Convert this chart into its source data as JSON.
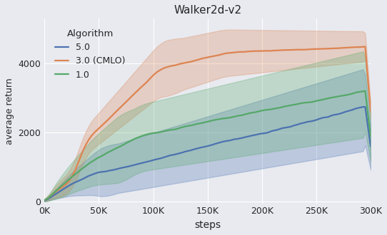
{
  "title": "Walker2d-v2",
  "xlabel": "steps",
  "ylabel": "average return",
  "xlim": [
    0,
    300000
  ],
  "ylim": [
    -50,
    5300
  ],
  "xtick_vals": [
    0,
    50000,
    100000,
    150000,
    200000,
    250000,
    300000
  ],
  "xtick_labels": [
    "0K",
    "50K",
    "100K",
    "150K",
    "200K",
    "250K",
    "300K"
  ],
  "ytick_vals": [
    0,
    2000,
    4000
  ],
  "legend_title": "Algorithm",
  "blue_color": "#4c72b0",
  "orange_color": "#dd8452",
  "green_color": "#55a868",
  "bg_color": "#e8eaf0",
  "grid_color": "#ffffff",
  "shade_alpha": 0.28,
  "line_width": 1.6,
  "seed": 7
}
